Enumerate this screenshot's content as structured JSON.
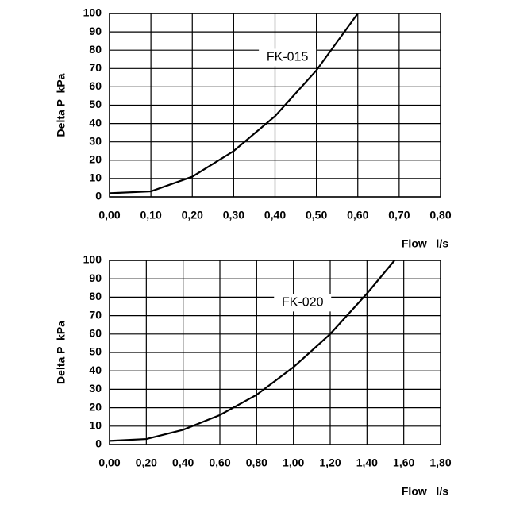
{
  "chart_data": [
    {
      "type": "line",
      "x_label": "Flow   l/s",
      "y_label": "Delta P  kPa",
      "x": [
        0,
        0.1,
        0.2,
        0.3,
        0.4,
        0.5,
        0.6
      ],
      "series": [
        {
          "name": "FK-015",
          "color": "#000000",
          "values": [
            2,
            3,
            11,
            25,
            44,
            69,
            100
          ]
        }
      ],
      "xlim": [
        0,
        0.8
      ],
      "ylim": [
        0,
        100
      ],
      "xticks": [
        {
          "value": 0,
          "label": "0,00"
        },
        {
          "value": 0.1,
          "label": "0,10"
        },
        {
          "value": 0.2,
          "label": "0,20"
        },
        {
          "value": 0.3,
          "label": "0,30"
        },
        {
          "value": 0.4,
          "label": "0,40"
        },
        {
          "value": 0.5,
          "label": "0,50"
        },
        {
          "value": 0.6,
          "label": "0,60"
        },
        {
          "value": 0.7,
          "label": "0,70"
        },
        {
          "value": 0.8,
          "label": "0,80"
        }
      ],
      "yticks": [
        0,
        10,
        20,
        30,
        40,
        50,
        60,
        70,
        80,
        90,
        100
      ],
      "grid": true
    },
    {
      "type": "line",
      "x_label": "Flow   l/s",
      "y_label": "Delta P  kPa",
      "x": [
        0,
        0.2,
        0.4,
        0.6,
        0.8,
        1.0,
        1.2,
        1.4,
        1.55
      ],
      "series": [
        {
          "name": "FK-020",
          "color": "#000000",
          "values": [
            2,
            3,
            8,
            16,
            27,
            42,
            60,
            82,
            100
          ]
        }
      ],
      "xlim": [
        0,
        1.8
      ],
      "ylim": [
        0,
        100
      ],
      "xticks": [
        {
          "value": 0,
          "label": "0,00"
        },
        {
          "value": 0.2,
          "label": "0,20"
        },
        {
          "value": 0.4,
          "label": "0,40"
        },
        {
          "value": 0.6,
          "label": "0,60"
        },
        {
          "value": 0.8,
          "label": "0,80"
        },
        {
          "value": 1.0,
          "label": "1,00"
        },
        {
          "value": 1.2,
          "label": "1,20"
        },
        {
          "value": 1.4,
          "label": "1,40"
        },
        {
          "value": 1.6,
          "label": "1,60"
        },
        {
          "value": 1.8,
          "label": "1,80"
        }
      ],
      "yticks": [
        0,
        10,
        20,
        30,
        40,
        50,
        60,
        70,
        80,
        90,
        100
      ],
      "grid": true
    }
  ]
}
